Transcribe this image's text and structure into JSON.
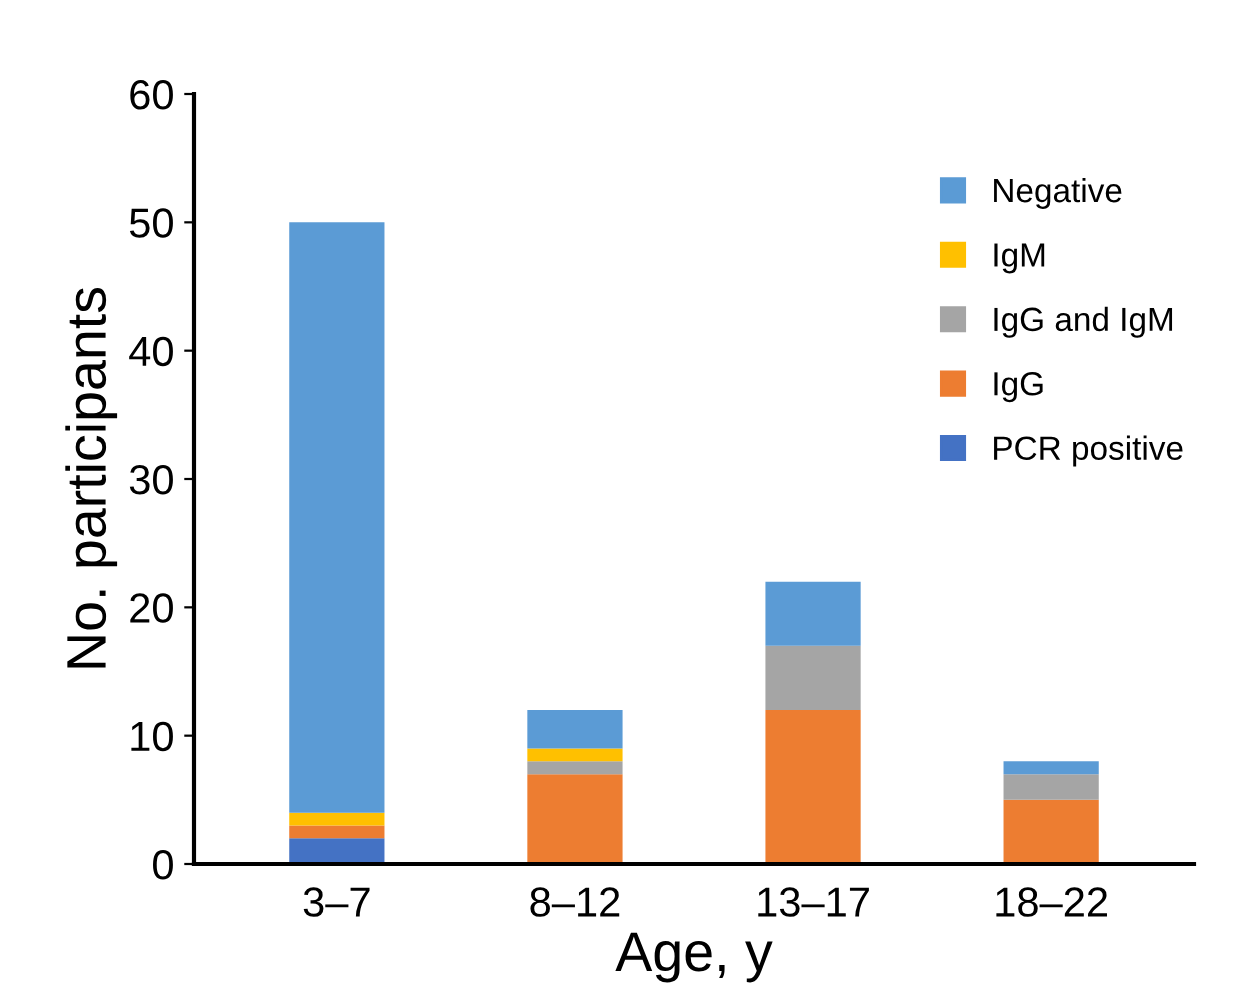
{
  "chart_data": {
    "type": "bar",
    "stacked": true,
    "xlabel": "Age, y",
    "ylabel": "No. participants",
    "categories": [
      "3–7",
      "8–12",
      "13–17",
      "18–22"
    ],
    "series": [
      {
        "name": "PCR positive",
        "color": "#4472c4",
        "values": [
          2,
          0,
          0,
          0
        ]
      },
      {
        "name": "IgG",
        "color": "#ed7d31",
        "values": [
          1,
          7,
          12,
          5
        ]
      },
      {
        "name": "IgG and IgM",
        "color": "#a5a5a5",
        "values": [
          0,
          1,
          5,
          2
        ]
      },
      {
        "name": "IgM",
        "color": "#ffc000",
        "values": [
          1,
          1,
          0,
          0
        ]
      },
      {
        "name": "Negative",
        "color": "#5b9bd5",
        "values": [
          46,
          3,
          5,
          1
        ]
      }
    ],
    "ylim": [
      0,
      60
    ],
    "yticks": [
      0,
      10,
      20,
      30,
      40,
      50,
      60
    ],
    "grid": false,
    "legend": "top right"
  }
}
